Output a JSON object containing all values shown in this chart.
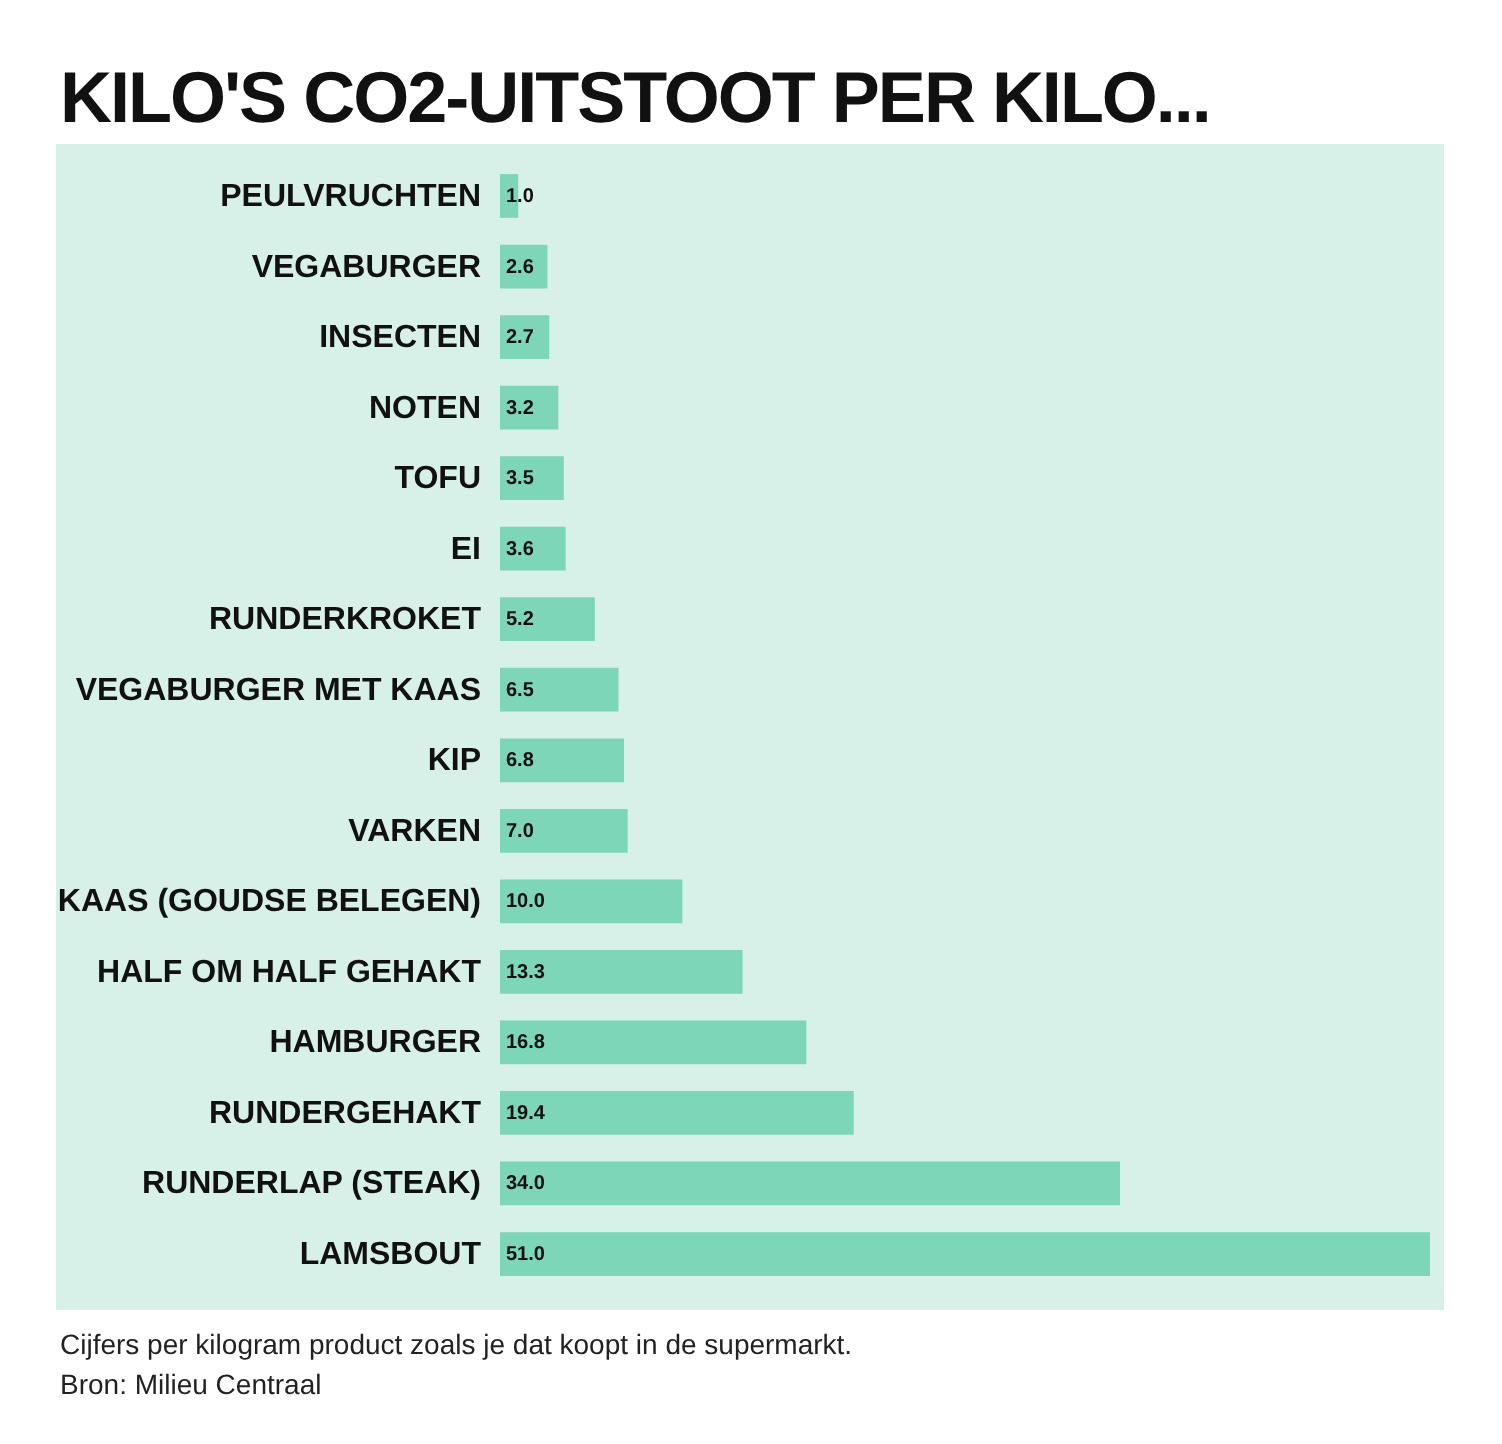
{
  "chart_data": {
    "type": "bar",
    "orientation": "horizontal",
    "title": "KILO'S CO2-UITSTOOT PER KILO...",
    "categories": [
      "PEULVRUCHTEN",
      "VEGABURGER",
      "INSECTEN",
      "NOTEN",
      "TOFU",
      "EI",
      "RUNDERKROKET",
      "VEGABURGER MET KAAS",
      "KIP",
      "VARKEN",
      "KAAS (GOUDSE BELEGEN)",
      "HALF OM HALF GEHAKT",
      "HAMBURGER",
      "RUNDERGEHAKT",
      "RUNDERLAP (STEAK)",
      "LAMSBOUT"
    ],
    "values": [
      1.0,
      2.6,
      2.7,
      3.2,
      3.5,
      3.6,
      5.2,
      6.5,
      6.8,
      7.0,
      10.0,
      13.3,
      16.8,
      19.4,
      34.0,
      51.0
    ],
    "value_labels": [
      "1.0",
      "2.6",
      "2.7",
      "3.2",
      "3.5",
      "3.6",
      "5.2",
      "6.5",
      "6.8",
      "7.0",
      "10.0",
      "13.3",
      "16.8",
      "19.4",
      "34.0",
      "51.0"
    ],
    "color": "#7dd6b8",
    "tick_labels": "y",
    "annotations": [
      "Cijfers per kilogram product zoals je dat koopt in de supermarkt.",
      "Bron: Milieu Centraal"
    ]
  }
}
